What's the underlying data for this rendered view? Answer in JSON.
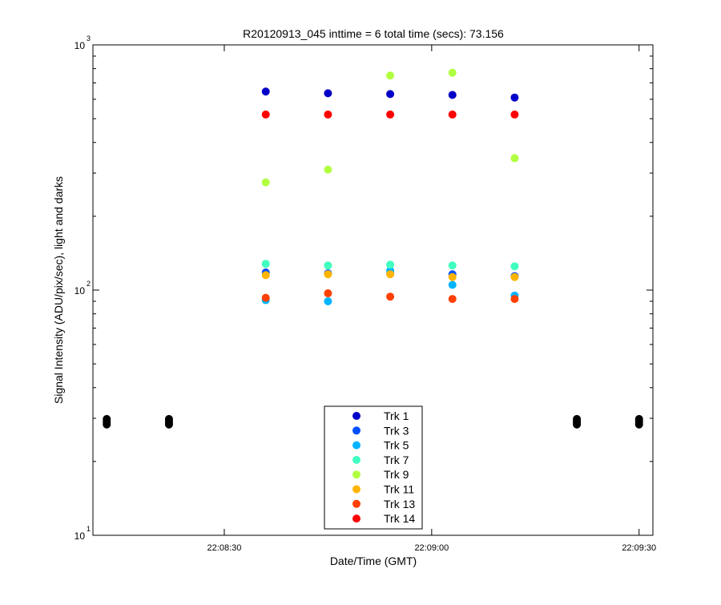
{
  "chart_data": {
    "type": "scatter",
    "title": "R20120913_045 inttime = 6 total time (secs): 73.156",
    "xlabel": "Date/Time (GMT)",
    "ylabel": "Signal Intensity (ADU/pix/sec), light and darks",
    "y_scale": "log",
    "ylim": [
      10,
      1000
    ],
    "y_ticks": [
      {
        "value": 10,
        "label": "10",
        "exp": "1"
      },
      {
        "value": 100,
        "label": "10",
        "exp": "2"
      },
      {
        "value": 1000,
        "label": "10",
        "exp": "3"
      }
    ],
    "xlim": [
      "22:08:11",
      "22:09:32"
    ],
    "x_ticks": [
      {
        "time": "22:08:30",
        "label": "22:08:30"
      },
      {
        "time": "22:09:00",
        "label": "22:09:00"
      },
      {
        "time": "22:09:30",
        "label": "22:09:30"
      }
    ],
    "x": [
      "22:08:36",
      "22:08:45",
      "22:08:54",
      "22:09:03",
      "22:09:12"
    ],
    "series": [
      {
        "name": "Trk 1",
        "color": "#0000c8",
        "values": [
          645,
          635,
          630,
          625,
          610
        ]
      },
      {
        "name": "Trk 3",
        "color": "#0050ff",
        "values": [
          118,
          117,
          117,
          116,
          114
        ]
      },
      {
        "name": "Trk 5",
        "color": "#00b4ff",
        "values": [
          91,
          90,
          120,
          105,
          95
        ]
      },
      {
        "name": "Trk 7",
        "color": "#40ffc0",
        "values": [
          128,
          126,
          127,
          126,
          125
        ]
      },
      {
        "name": "Trk 9",
        "color": "#b0ff40",
        "values": [
          275,
          310,
          750,
          770,
          345
        ]
      },
      {
        "name": "Trk 11",
        "color": "#ffb400",
        "values": [
          115,
          116,
          116,
          113,
          113
        ]
      },
      {
        "name": "Trk 13",
        "color": "#ff4000",
        "values": [
          93,
          97,
          94,
          92,
          92
        ]
      },
      {
        "name": "Trk 14",
        "color": "#ff0000",
        "values": [
          520,
          520,
          520,
          520,
          520
        ]
      }
    ],
    "darks": {
      "color": "#000000",
      "x": [
        "22:08:13",
        "22:08:22",
        "22:09:21",
        "22:09:30"
      ],
      "values": [
        [
          28.3,
          28.8,
          29.3,
          29.8
        ],
        [
          28.3,
          28.8,
          29.3,
          29.8
        ],
        [
          28.3,
          28.8,
          29.3,
          29.8
        ],
        [
          28.3,
          28.8,
          29.3,
          29.8
        ]
      ]
    },
    "legend": {
      "position": "bottom-center"
    }
  }
}
